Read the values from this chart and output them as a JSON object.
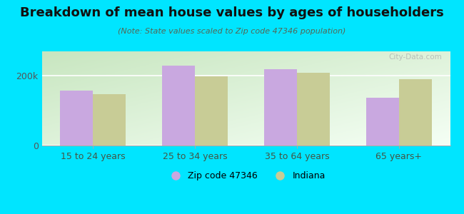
{
  "title": "Breakdown of mean house values by ages of householders",
  "subtitle": "(Note: State values scaled to Zip code 47346 population)",
  "categories": [
    "15 to 24 years",
    "25 to 34 years",
    "35 to 64 years",
    "65 years+"
  ],
  "zip_values": [
    158000,
    230000,
    218000,
    138000
  ],
  "state_values": [
    148000,
    198000,
    208000,
    190000
  ],
  "zip_color": "#c9a8e0",
  "state_color": "#c8cc96",
  "background_outer": "#00e5ff",
  "ylim": [
    0,
    270000
  ],
  "ytick_labels": [
    "0",
    "200k"
  ],
  "ytick_values": [
    0,
    200000
  ],
  "legend_zip_label": "Zip code 47346",
  "legend_state_label": "Indiana",
  "bar_width": 0.32,
  "watermark": "City-Data.com",
  "title_fontsize": 13,
  "subtitle_fontsize": 8,
  "tick_fontsize": 9,
  "legend_fontsize": 9,
  "grad_color_topleft": "#c8e6c0",
  "grad_color_bottomright": "#f5fff5"
}
